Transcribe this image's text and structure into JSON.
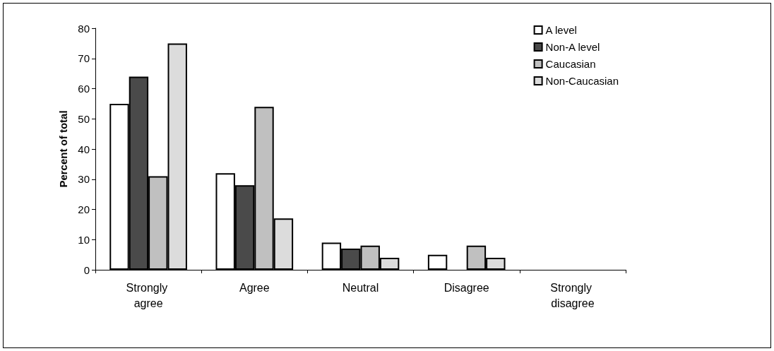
{
  "chart_data": {
    "type": "bar",
    "ylabel": "Percent of total",
    "categories": [
      "Strongly agree",
      "Agree",
      "Neutral",
      "Disagree",
      "Strongly disagree"
    ],
    "series": [
      {
        "name": "A level",
        "color": "#ffffff",
        "values": [
          55,
          32,
          9,
          5,
          0
        ]
      },
      {
        "name": "Non-A level",
        "color": "#4a4a4a",
        "values": [
          64,
          28,
          7,
          0,
          0
        ]
      },
      {
        "name": "Caucasian",
        "color": "#c0c0c0",
        "values": [
          31,
          54,
          8,
          8,
          0
        ]
      },
      {
        "name": "Non-Caucasian",
        "color": "#dcdcdc",
        "values": [
          75,
          17,
          4,
          4,
          0
        ]
      }
    ],
    "ylim": [
      0,
      80
    ],
    "yticks": [
      0,
      10,
      20,
      30,
      40,
      50,
      60,
      70,
      80
    ],
    "grid": false,
    "legend": "top right"
  }
}
